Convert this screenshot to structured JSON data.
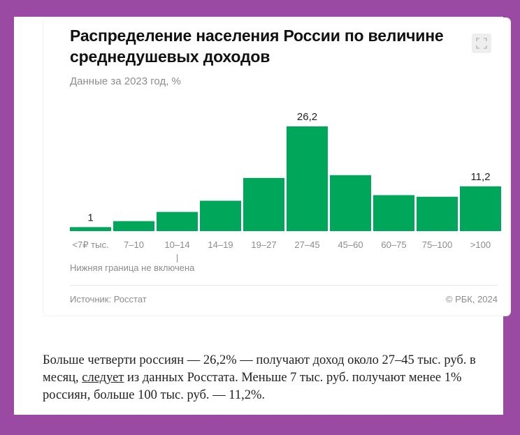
{
  "chart_data": {
    "type": "bar",
    "title": "Распределение населения России по величине среднедушевых доходов",
    "subtitle": "Данные за 2023 год, %",
    "categories": [
      "<7₽ тыс.",
      "7–10",
      "10–14",
      "14–19",
      "19–27",
      "27–45",
      "45–60",
      "60–75",
      "75–100",
      ">100"
    ],
    "values": [
      1,
      2.5,
      4.8,
      7.6,
      13.3,
      26.2,
      14.0,
      9.0,
      8.6,
      11.2
    ],
    "data_labels": [
      {
        "index": 0,
        "text": "1"
      },
      {
        "index": 5,
        "text": "26,2"
      },
      {
        "index": 9,
        "text": "11,2"
      }
    ],
    "annotation": "Нижняя граница не включена",
    "xlabel": "",
    "ylabel": "",
    "ylim": [
      0,
      26.2
    ],
    "bar_color": "#00a65a"
  },
  "card": {
    "source": "Источник: Росстат",
    "copyright": "© РБК, 2024"
  },
  "article": {
    "part1": "Больше четверти россиян — 26,2% — получают доход около 27–45 тыс. руб. в месяц, ",
    "link": "следует",
    "part2": " из данных Росстата. Меньше 7 тыс. руб. получают менее 1% россиян, больше 100 тыс. руб. — 11,2%."
  },
  "icons": {
    "expand": "expand-icon"
  }
}
